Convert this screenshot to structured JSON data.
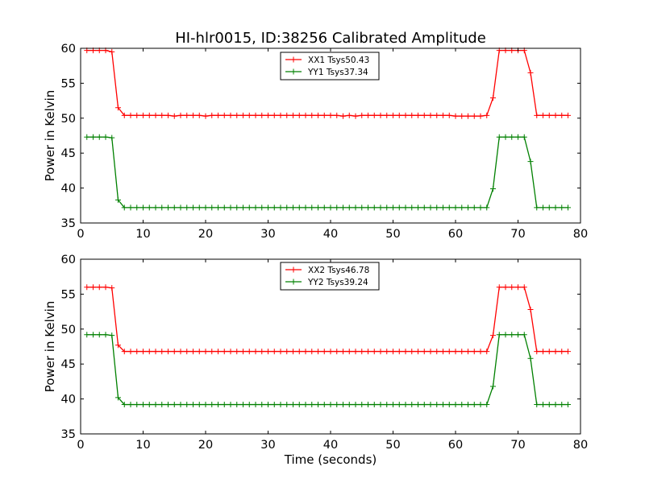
{
  "chart_data": [
    {
      "type": "line",
      "title": "HI-hlr0015, ID:38256 Calibrated Amplitude",
      "xlabel": "",
      "ylabel": "Power in Kelvin",
      "xlim": [
        0,
        80
      ],
      "ylim": [
        35,
        60
      ],
      "xticks": [
        0,
        10,
        20,
        30,
        40,
        50,
        60,
        70,
        80
      ],
      "yticks": [
        35,
        40,
        45,
        50,
        55,
        60
      ],
      "legend_position": "top-center",
      "series": [
        {
          "name": "XX1 Tsys50.43",
          "color": "#ff0000",
          "marker": "+",
          "x": [
            1,
            2,
            3,
            4,
            5,
            6,
            7,
            8,
            9,
            10,
            11,
            12,
            13,
            14,
            15,
            16,
            17,
            18,
            19,
            20,
            21,
            22,
            23,
            24,
            25,
            26,
            27,
            28,
            29,
            30,
            31,
            32,
            33,
            34,
            35,
            36,
            37,
            38,
            39,
            40,
            41,
            42,
            43,
            44,
            45,
            46,
            47,
            48,
            49,
            50,
            51,
            52,
            53,
            54,
            55,
            56,
            57,
            58,
            59,
            60,
            61,
            62,
            63,
            64,
            65,
            66,
            67,
            68,
            69,
            70,
            71,
            72,
            73,
            74,
            75,
            76,
            77,
            78
          ],
          "values": [
            59.7,
            59.7,
            59.7,
            59.7,
            59.5,
            51.5,
            50.4,
            50.4,
            50.4,
            50.4,
            50.4,
            50.4,
            50.4,
            50.4,
            50.3,
            50.4,
            50.4,
            50.4,
            50.4,
            50.3,
            50.4,
            50.4,
            50.4,
            50.4,
            50.4,
            50.4,
            50.4,
            50.4,
            50.4,
            50.4,
            50.4,
            50.4,
            50.4,
            50.4,
            50.4,
            50.4,
            50.4,
            50.4,
            50.4,
            50.4,
            50.4,
            50.3,
            50.4,
            50.3,
            50.4,
            50.4,
            50.4,
            50.4,
            50.4,
            50.4,
            50.4,
            50.4,
            50.4,
            50.4,
            50.4,
            50.4,
            50.4,
            50.4,
            50.4,
            50.3,
            50.3,
            50.3,
            50.3,
            50.3,
            50.4,
            52.9,
            59.7,
            59.7,
            59.7,
            59.7,
            59.7,
            56.5,
            50.4,
            50.4,
            50.4,
            50.4,
            50.4,
            50.4
          ]
        },
        {
          "name": "YY1 Tsys37.34",
          "color": "#008000",
          "marker": "+",
          "x": [
            1,
            2,
            3,
            4,
            5,
            6,
            7,
            8,
            9,
            10,
            11,
            12,
            13,
            14,
            15,
            16,
            17,
            18,
            19,
            20,
            21,
            22,
            23,
            24,
            25,
            26,
            27,
            28,
            29,
            30,
            31,
            32,
            33,
            34,
            35,
            36,
            37,
            38,
            39,
            40,
            41,
            42,
            43,
            44,
            45,
            46,
            47,
            48,
            49,
            50,
            51,
            52,
            53,
            54,
            55,
            56,
            57,
            58,
            59,
            60,
            61,
            62,
            63,
            64,
            65,
            66,
            67,
            68,
            69,
            70,
            71,
            72,
            73,
            74,
            75,
            76,
            77,
            78
          ],
          "values": [
            47.3,
            47.3,
            47.3,
            47.3,
            47.2,
            38.3,
            37.2,
            37.2,
            37.2,
            37.2,
            37.2,
            37.2,
            37.2,
            37.2,
            37.2,
            37.2,
            37.2,
            37.2,
            37.2,
            37.2,
            37.2,
            37.2,
            37.2,
            37.2,
            37.2,
            37.2,
            37.2,
            37.2,
            37.2,
            37.2,
            37.2,
            37.2,
            37.2,
            37.2,
            37.2,
            37.2,
            37.2,
            37.2,
            37.2,
            37.2,
            37.2,
            37.2,
            37.2,
            37.2,
            37.2,
            37.2,
            37.2,
            37.2,
            37.2,
            37.2,
            37.2,
            37.2,
            37.2,
            37.2,
            37.2,
            37.2,
            37.2,
            37.2,
            37.2,
            37.2,
            37.2,
            37.2,
            37.2,
            37.2,
            37.2,
            39.9,
            47.3,
            47.3,
            47.3,
            47.3,
            47.3,
            43.8,
            37.2,
            37.2,
            37.2,
            37.2,
            37.2,
            37.2
          ]
        }
      ]
    },
    {
      "type": "line",
      "title": "",
      "xlabel": "Time (seconds)",
      "ylabel": "Power in Kelvin",
      "xlim": [
        0,
        80
      ],
      "ylim": [
        35,
        60
      ],
      "xticks": [
        0,
        10,
        20,
        30,
        40,
        50,
        60,
        70,
        80
      ],
      "yticks": [
        35,
        40,
        45,
        50,
        55,
        60
      ],
      "legend_position": "top-center",
      "series": [
        {
          "name": "XX2 Tsys46.78",
          "color": "#ff0000",
          "marker": "+",
          "x": [
            1,
            2,
            3,
            4,
            5,
            6,
            7,
            8,
            9,
            10,
            11,
            12,
            13,
            14,
            15,
            16,
            17,
            18,
            19,
            20,
            21,
            22,
            23,
            24,
            25,
            26,
            27,
            28,
            29,
            30,
            31,
            32,
            33,
            34,
            35,
            36,
            37,
            38,
            39,
            40,
            41,
            42,
            43,
            44,
            45,
            46,
            47,
            48,
            49,
            50,
            51,
            52,
            53,
            54,
            55,
            56,
            57,
            58,
            59,
            60,
            61,
            62,
            63,
            64,
            65,
            66,
            67,
            68,
            69,
            70,
            71,
            72,
            73,
            74,
            75,
            76,
            77,
            78
          ],
          "values": [
            56.0,
            56.0,
            56.0,
            56.0,
            55.9,
            47.7,
            46.8,
            46.8,
            46.8,
            46.8,
            46.8,
            46.8,
            46.8,
            46.8,
            46.8,
            46.8,
            46.8,
            46.8,
            46.8,
            46.8,
            46.8,
            46.8,
            46.8,
            46.8,
            46.8,
            46.8,
            46.8,
            46.8,
            46.8,
            46.8,
            46.8,
            46.8,
            46.8,
            46.8,
            46.8,
            46.8,
            46.8,
            46.8,
            46.8,
            46.8,
            46.8,
            46.8,
            46.8,
            46.8,
            46.8,
            46.8,
            46.8,
            46.8,
            46.8,
            46.8,
            46.8,
            46.8,
            46.8,
            46.8,
            46.8,
            46.8,
            46.8,
            46.8,
            46.8,
            46.8,
            46.8,
            46.8,
            46.8,
            46.8,
            46.8,
            49.1,
            56.0,
            56.0,
            56.0,
            56.0,
            56.0,
            52.8,
            46.8,
            46.8,
            46.8,
            46.8,
            46.8,
            46.8
          ]
        },
        {
          "name": "YY2 Tsys39.24",
          "color": "#008000",
          "marker": "+",
          "x": [
            1,
            2,
            3,
            4,
            5,
            6,
            7,
            8,
            9,
            10,
            11,
            12,
            13,
            14,
            15,
            16,
            17,
            18,
            19,
            20,
            21,
            22,
            23,
            24,
            25,
            26,
            27,
            28,
            29,
            30,
            31,
            32,
            33,
            34,
            35,
            36,
            37,
            38,
            39,
            40,
            41,
            42,
            43,
            44,
            45,
            46,
            47,
            48,
            49,
            50,
            51,
            52,
            53,
            54,
            55,
            56,
            57,
            58,
            59,
            60,
            61,
            62,
            63,
            64,
            65,
            66,
            67,
            68,
            69,
            70,
            71,
            72,
            73,
            74,
            75,
            76,
            77,
            78
          ],
          "values": [
            49.2,
            49.2,
            49.2,
            49.2,
            49.1,
            40.2,
            39.2,
            39.2,
            39.2,
            39.2,
            39.2,
            39.2,
            39.2,
            39.2,
            39.2,
            39.2,
            39.2,
            39.2,
            39.2,
            39.2,
            39.2,
            39.2,
            39.2,
            39.2,
            39.2,
            39.2,
            39.2,
            39.2,
            39.2,
            39.2,
            39.2,
            39.2,
            39.2,
            39.2,
            39.2,
            39.2,
            39.2,
            39.2,
            39.2,
            39.2,
            39.2,
            39.2,
            39.2,
            39.2,
            39.2,
            39.2,
            39.2,
            39.2,
            39.2,
            39.2,
            39.2,
            39.2,
            39.2,
            39.2,
            39.2,
            39.2,
            39.2,
            39.2,
            39.2,
            39.2,
            39.2,
            39.2,
            39.2,
            39.2,
            39.2,
            41.8,
            49.2,
            49.2,
            49.2,
            49.2,
            49.2,
            45.8,
            39.2,
            39.2,
            39.2,
            39.2,
            39.2,
            39.2
          ]
        }
      ]
    }
  ]
}
